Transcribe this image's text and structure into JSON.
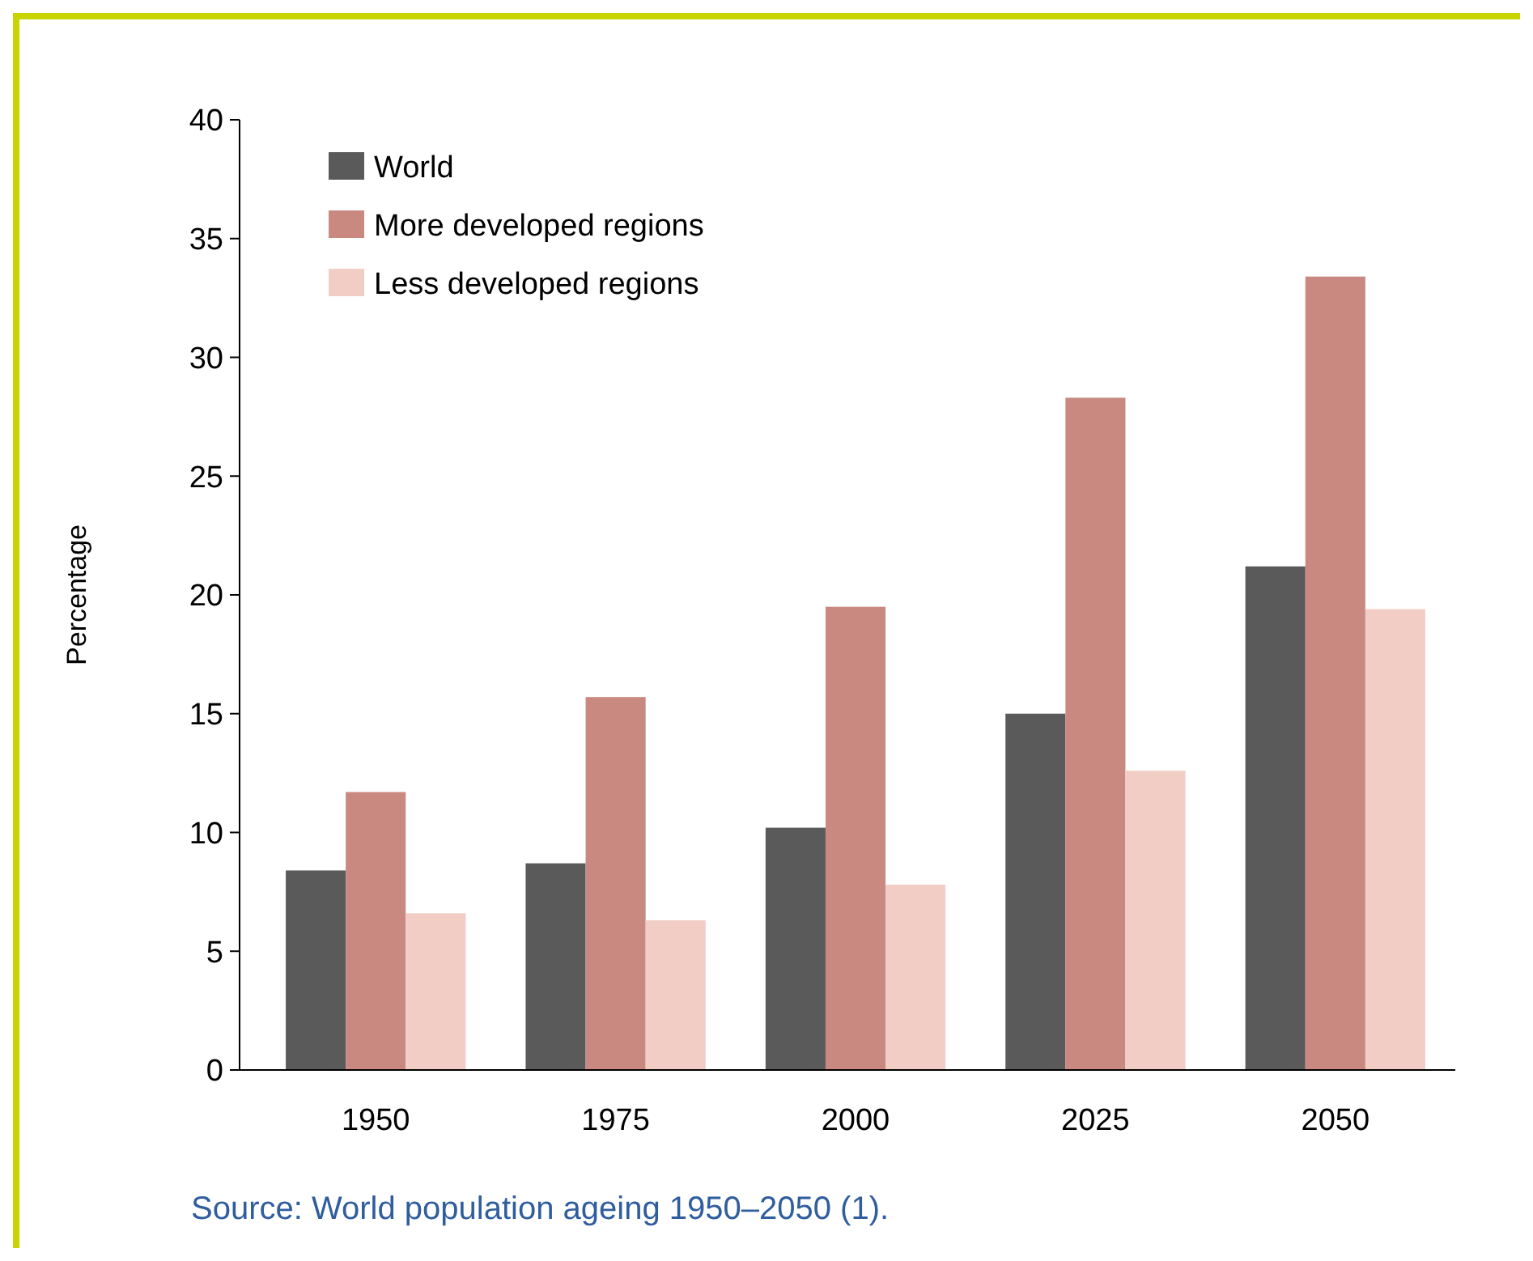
{
  "chart_data": {
    "type": "bar",
    "ylabel": "Percentage",
    "categories": [
      "1950",
      "1975",
      "2000",
      "2025",
      "2050"
    ],
    "series": [
      {
        "name": "World",
        "color": "#5a5a5a",
        "values": [
          8.4,
          8.7,
          10.2,
          15.0,
          21.2
        ]
      },
      {
        "name": "More developed regions",
        "color": "#c98880",
        "values": [
          11.7,
          15.7,
          19.5,
          28.3,
          33.4
        ]
      },
      {
        "name": "Less developed regions",
        "color": "#f2cdc6",
        "values": [
          6.6,
          6.3,
          7.8,
          12.6,
          19.4
        ]
      }
    ],
    "ylim": [
      0,
      40
    ],
    "yticks": [
      0,
      5,
      10,
      15,
      20,
      25,
      30,
      35,
      40
    ],
    "grid": false,
    "legend": "top left",
    "annotations": [
      "Source: World population ageing 1950–2050 (1)."
    ]
  }
}
